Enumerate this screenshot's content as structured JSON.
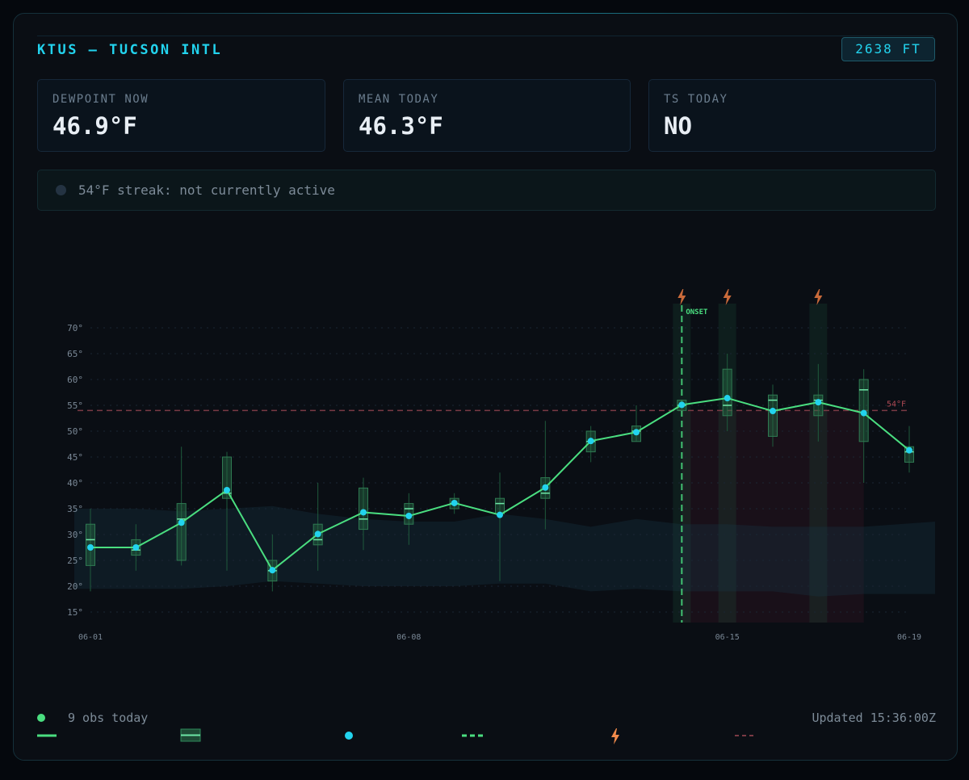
{
  "station": {
    "title": "KTUS — TUCSON INTL",
    "elevation": "2638 FT"
  },
  "cards": [
    {
      "label": "DEWPOINT NOW",
      "value": "46.9°F"
    },
    {
      "label": "MEAN TODAY",
      "value": "46.3°F"
    },
    {
      "label": "TS TODAY",
      "value": "NO"
    }
  ],
  "streak": {
    "text": "54°F streak: not currently active"
  },
  "footer": {
    "obs": "9 obs today",
    "updated": "Updated 15:36:00Z"
  },
  "colors": {
    "accent": "#22d3ee",
    "line": "#4ade80",
    "threshold": "#b04a55",
    "storm": "#f08a4b"
  },
  "chart_data": {
    "type": "line",
    "y_ticks": [
      "70°",
      "65°",
      "60°",
      "55°",
      "50°",
      "45°",
      "40°",
      "35°",
      "30°",
      "25°",
      "20°",
      "15°"
    ],
    "x_ticks": [
      "06-01",
      "06-08",
      "06-15",
      "06-19"
    ],
    "ylim": [
      13,
      72
    ],
    "x_dates": [
      "06-01",
      "06-02",
      "06-03",
      "06-04",
      "06-05",
      "06-06",
      "06-07",
      "06-08",
      "06-09",
      "06-10",
      "06-11",
      "06-12",
      "06-13",
      "06-14",
      "06-15",
      "06-16",
      "06-17",
      "06-18",
      "06-19"
    ],
    "series": [
      {
        "values": [
          27.5,
          27.5,
          32.3,
          38.6,
          23.1,
          30.1,
          34.3,
          33.6,
          36.1,
          33.8,
          39.1,
          48.1,
          49.8,
          55.1,
          56.4,
          53.9,
          55.6,
          53.5,
          46.3
        ]
      }
    ],
    "boxes": [
      {
        "min": 19,
        "q1": 24,
        "median": 29,
        "q3": 32,
        "max": 35
      },
      {
        "min": 23,
        "q1": 26,
        "median": 27,
        "q3": 29,
        "max": 32
      },
      {
        "min": 24,
        "q1": 25,
        "median": 33,
        "q3": 36,
        "max": 47
      },
      {
        "min": 23,
        "q1": 37,
        "median": 38,
        "q3": 45,
        "max": 46
      },
      {
        "min": 19,
        "q1": 21,
        "median": 23,
        "q3": 25,
        "max": 30
      },
      {
        "min": 23,
        "q1": 28,
        "median": 29,
        "q3": 32,
        "max": 40
      },
      {
        "min": 27,
        "q1": 31,
        "median": 33,
        "q3": 39,
        "max": 41
      },
      {
        "min": 28,
        "q1": 32,
        "median": 35,
        "q3": 36,
        "max": 38
      },
      {
        "min": 34,
        "q1": 35,
        "median": 36,
        "q3": 37,
        "max": 38
      },
      {
        "min": 21,
        "q1": 34,
        "median": 36,
        "q3": 37,
        "max": 42
      },
      {
        "min": 31,
        "q1": 37,
        "median": 38,
        "q3": 41,
        "max": 52
      },
      {
        "min": 44,
        "q1": 46,
        "median": 48,
        "q3": 50,
        "max": 51
      },
      {
        "min": 48,
        "q1": 48,
        "median": 50,
        "q3": 51,
        "max": 55
      },
      {
        "min": 54,
        "q1": 54,
        "median": 55,
        "q3": 56,
        "max": 56
      },
      {
        "min": 50,
        "q1": 53,
        "median": 55,
        "q3": 62,
        "max": 65
      },
      {
        "min": 47,
        "q1": 49,
        "median": 56,
        "q3": 57,
        "max": 59
      },
      {
        "min": 48,
        "q1": 53,
        "median": 56,
        "q3": 57,
        "max": 63
      },
      {
        "min": 40,
        "q1": 48,
        "median": 58,
        "q3": 60,
        "max": 62
      },
      {
        "min": 42,
        "q1": 44,
        "median": 46,
        "q3": 47,
        "max": 51
      }
    ],
    "climatology_band": {
      "upper": [
        35,
        35,
        34.5,
        35,
        35.5,
        34,
        33,
        32.5,
        32.5,
        34,
        33,
        31.5,
        33,
        32,
        32,
        31.5,
        31.5,
        31.5,
        32.5
      ],
      "lower": [
        19.5,
        19.5,
        19.5,
        20,
        21,
        20.5,
        20,
        20,
        20,
        20.5,
        20.5,
        19,
        19.5,
        19,
        19,
        19,
        18,
        18.5,
        18.5
      ]
    },
    "threshold": {
      "value": 54,
      "label": "54°F"
    },
    "onset": {
      "date": "06-14",
      "label": "ONSET"
    },
    "storm_days": [
      "06-14",
      "06-15",
      "06-17"
    ],
    "grid": true
  }
}
